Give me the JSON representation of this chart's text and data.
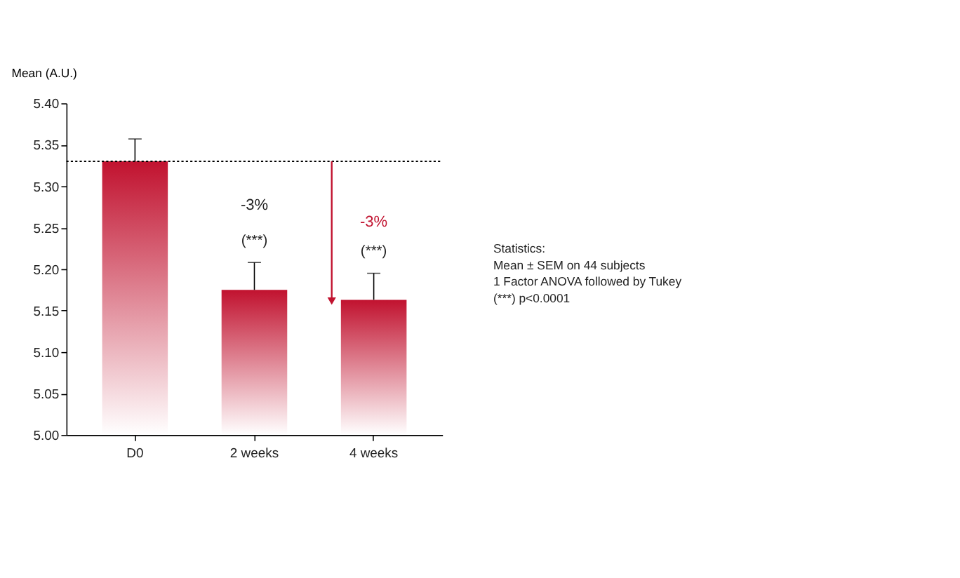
{
  "chart_data": {
    "type": "bar",
    "ylabel": "Mean (A.U.)",
    "categories": [
      "D0",
      "2 weeks",
      "4 weeks"
    ],
    "values": [
      5.33,
      5.175,
      5.163
    ],
    "color": "#c1122f",
    "errors": [
      [
        5.33,
        5.357
      ],
      [
        5.175,
        5.208
      ],
      [
        5.163,
        5.195
      ]
    ],
    "ylim": [
      5.0,
      5.4
    ],
    "yticks": [
      {
        "value": 5.0,
        "label": "5.00"
      },
      {
        "value": 5.05,
        "label": "5.05"
      },
      {
        "value": 5.1,
        "label": "5.10"
      },
      {
        "value": 5.15,
        "label": "5.15"
      },
      {
        "value": 5.2,
        "label": "5.20"
      },
      {
        "value": 5.25,
        "label": "5.25"
      },
      {
        "value": 5.3,
        "label": "5.30"
      },
      {
        "value": 5.35,
        "label": "5.35"
      },
      {
        "value": 5.4,
        "label": "5.40"
      }
    ],
    "ref_lines": [
      {
        "axis": "y",
        "value": 5.33,
        "line_style": "dotted",
        "color": "#000000"
      }
    ],
    "annotations": [
      "-3%",
      "(***)",
      "-3%",
      "(***)",
      "Statistics:",
      "Mean ± SEM on 44 subjects",
      "1 Factor ANOVA followed by Tukey",
      "(***)  p<0.0001"
    ]
  }
}
